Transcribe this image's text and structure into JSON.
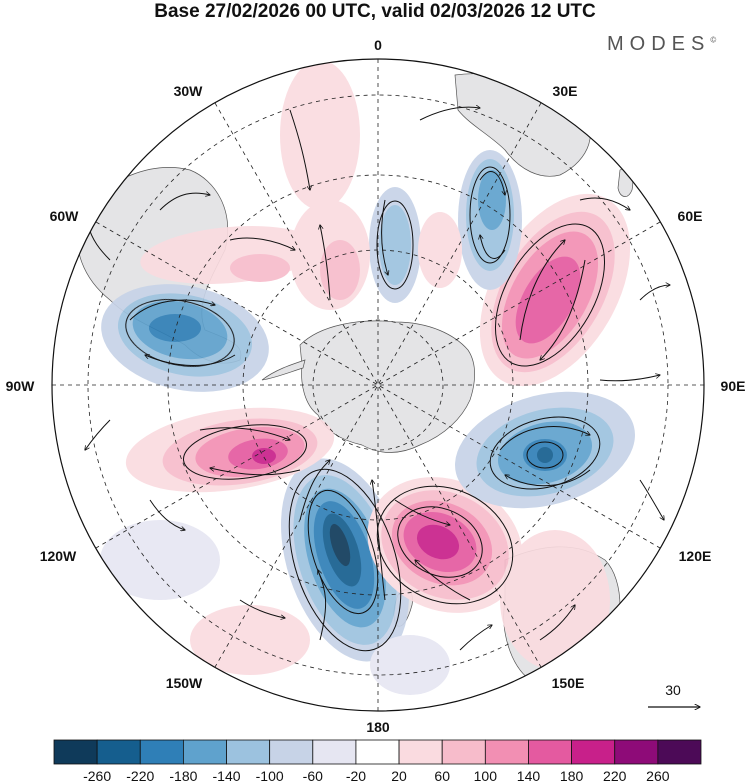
{
  "title": "Base 27/02/2026 00 UTC, valid 02/03/2026 12 UTC",
  "brand": "MODES",
  "brand_mark": "©",
  "projection": "south-polar-stereographic",
  "meridian_labels": {
    "top": "0",
    "upper_left": "30W",
    "upper_right": "30E",
    "left_upper": "60W",
    "right_upper": "60E",
    "left": "90W",
    "right": "90E",
    "left_lower": "120W",
    "right_lower": "120E",
    "lower_left": "150W",
    "lower_right": "150E",
    "bottom": "180"
  },
  "vector_scale": {
    "label": "30"
  },
  "colorbar": {
    "labels": [
      "-260",
      "-220",
      "-180",
      "-140",
      "-100",
      "-60",
      "-20",
      "20",
      "60",
      "100",
      "140",
      "180",
      "220",
      "260"
    ],
    "colors": [
      "#0f3a5a",
      "#155e8e",
      "#2f7fb7",
      "#5fa2cd",
      "#9cc2df",
      "#c7d3e7",
      "#e6e6f2",
      "#ffffff",
      "#fadbe0",
      "#f7bccb",
      "#f28fb3",
      "#e45aa0",
      "#c8208a",
      "#8e0b78",
      "#4c0a57"
    ]
  },
  "anomaly_cells": [
    {
      "name": "neg-anomaly-south-pacific",
      "sign": "negative",
      "peak": -260
    },
    {
      "name": "pos-anomaly-ross-sea",
      "sign": "positive",
      "peak": 220
    },
    {
      "name": "pos-anomaly-amundsen",
      "sign": "positive",
      "peak": 180
    },
    {
      "name": "neg-anomaly-weddell",
      "sign": "negative",
      "peak": -180
    },
    {
      "name": "pos-anomaly-indian-ocean",
      "sign": "positive",
      "peak": 180
    },
    {
      "name": "neg-anomaly-southern-ocean-east",
      "sign": "negative",
      "peak": -220
    },
    {
      "name": "neg-anomaly-south-atlantic",
      "sign": "negative",
      "peak": -140
    },
    {
      "name": "pos-anomaly-south-atlantic",
      "sign": "positive",
      "peak": 100
    }
  ]
}
